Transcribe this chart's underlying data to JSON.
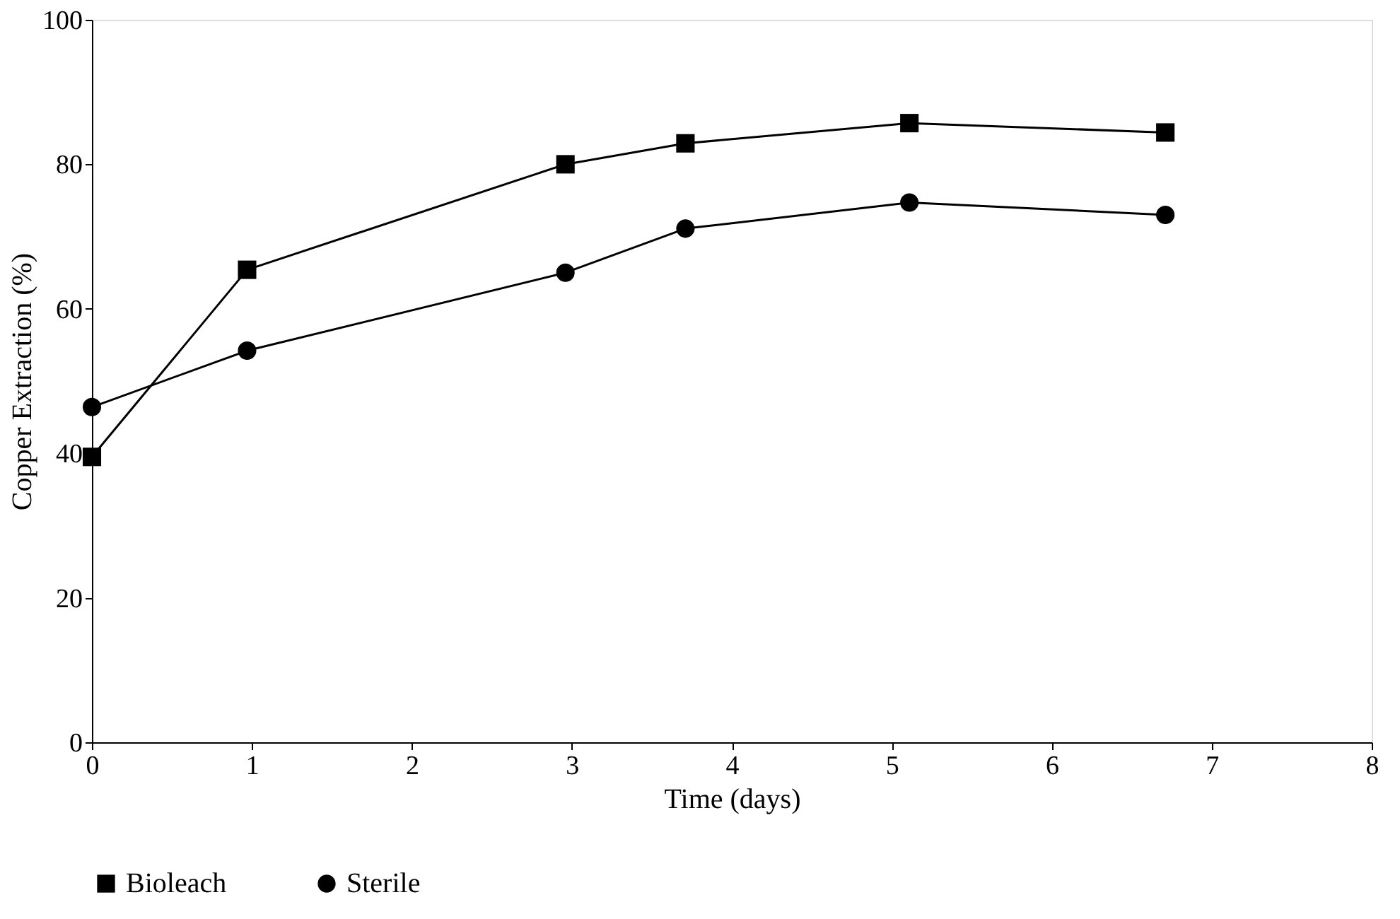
{
  "chart_data": {
    "type": "line",
    "xlabel": "Time (days)",
    "ylabel": "Copper Extraction (%)",
    "xlim": [
      0,
      8
    ],
    "xticks": [
      0,
      1,
      2,
      3,
      4,
      5,
      6,
      7,
      8
    ],
    "ylim": [
      0,
      100
    ],
    "yticks": [
      0,
      20,
      40,
      60,
      80,
      100
    ],
    "grid": false,
    "legend": "bottom",
    "line_style": "solid",
    "series": [
      {
        "name": "Bioleach",
        "color": "#000000",
        "marker": "square",
        "x": [
          0,
          0.97,
          2.96,
          3.71,
          5.11,
          6.71
        ],
        "values": [
          39.5,
          65.4,
          80.0,
          82.9,
          85.7,
          84.4
        ]
      },
      {
        "name": "Sterile",
        "color": "#000000",
        "marker": "circle",
        "x": [
          0,
          0.97,
          2.96,
          3.71,
          5.11,
          6.71
        ],
        "values": [
          46.4,
          54.2,
          65.0,
          71.1,
          74.7,
          73.0
        ]
      }
    ]
  }
}
